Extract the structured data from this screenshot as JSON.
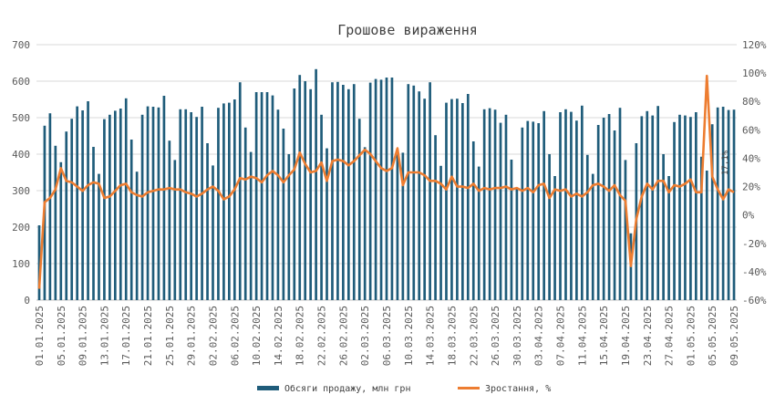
{
  "chart_data": {
    "type": "bar",
    "title": "Грошове вираження",
    "x_tick_labels": [
      "01.01.2025",
      "05.01.2025",
      "09.01.2025",
      "13.01.2025",
      "17.01.2025",
      "21.01.2025",
      "25.01.2025",
      "29.01.2025",
      "02.02.2025",
      "06.02.2025",
      "10.02.2025",
      "14.02.2025",
      "18.02.2025",
      "22.02.2025",
      "26.02.2025",
      "02.03.2025",
      "06.03.2025",
      "10.03.2025",
      "14.03.2025",
      "18.03.2025",
      "22.03.2025",
      "26.03.2025",
      "30.03.2025",
      "03.04.2025",
      "07.04.2025",
      "11.04.2025",
      "15.04.2025",
      "19.04.2025",
      "23.04.2025",
      "27.04.2025",
      "01.05.2025",
      "05.05.2025",
      "09.05.2025"
    ],
    "left_axis": {
      "ylim": [
        0,
        700
      ],
      "ticks": [
        0,
        100,
        200,
        300,
        400,
        500,
        600,
        700
      ]
    },
    "right_axis": {
      "ylim": [
        -60,
        120
      ],
      "ticks": [
        "-60%",
        "-40%",
        "-20%",
        "0%",
        "20%",
        "40%",
        "60%",
        "80%",
        "100%",
        "120%"
      ]
    },
    "grid": true,
    "legend_position": "bottom",
    "series": [
      {
        "name": "Обсяги продажу, млн грн",
        "type": "bar",
        "axis": "left",
        "color": "#1f5c7a",
        "values": [
          205,
          478,
          512,
          423,
          378,
          462,
          497,
          531,
          520,
          545,
          420,
          346,
          496,
          508,
          519,
          525,
          553,
          440,
          352,
          508,
          531,
          530,
          528,
          560,
          437,
          384,
          523,
          523,
          515,
          502,
          530,
          430,
          369,
          527,
          539,
          541,
          550,
          597,
          473,
          406,
          570,
          570,
          570,
          561,
          522,
          470,
          400,
          580,
          617,
          600,
          578,
          633,
          508,
          416,
          597,
          598,
          590,
          578,
          592,
          497,
          419,
          596,
          606,
          604,
          610,
          610,
          400,
          404,
          592,
          588,
          572,
          552,
          597,
          452,
          368,
          541,
          551,
          552,
          540,
          565,
          435,
          366,
          523,
          526,
          522,
          486,
          508,
          385,
          306,
          473,
          491,
          489,
          485,
          518,
          400,
          340,
          515,
          523,
          516,
          492,
          533,
          398,
          346,
          480,
          500,
          510,
          465,
          527,
          384,
          183,
          430,
          504,
          518,
          506,
          532,
          400,
          340,
          488,
          508,
          506,
          502,
          515,
          393,
          355,
          482,
          528,
          530,
          521,
          522
        ]
      },
      {
        "name": "Зростання, %",
        "type": "line",
        "axis": "right",
        "color": "#ed7d31",
        "values": [
          -52,
          9,
          12,
          18,
          33,
          24,
          23,
          20,
          17,
          21,
          23,
          22,
          12,
          13,
          17,
          21,
          22,
          16,
          14,
          13,
          16,
          17,
          18,
          18,
          19,
          18,
          18,
          16,
          15,
          13,
          15,
          18,
          20,
          17,
          11,
          13,
          18,
          26,
          25,
          27,
          26,
          23,
          28,
          31,
          28,
          23,
          28,
          32,
          44,
          36,
          30,
          31,
          37,
          24,
          38,
          39,
          38,
          35,
          38,
          42,
          46,
          43,
          38,
          33,
          31,
          33,
          47,
          21,
          30,
          30,
          30,
          28,
          24,
          24,
          22,
          18,
          27,
          20,
          20,
          19,
          22,
          17,
          19,
          18,
          19,
          19,
          20,
          18,
          19,
          17,
          19,
          16,
          21,
          22,
          12,
          18,
          17,
          18,
          13,
          15,
          13,
          16,
          21,
          22,
          20,
          17,
          21,
          14,
          10,
          -36,
          -3,
          13,
          22,
          18,
          24,
          24,
          16,
          21,
          20,
          22,
          25,
          16,
          16,
          98,
          27,
          18,
          11,
          18,
          16
        ]
      }
    ],
    "annotation": "17,1%"
  }
}
